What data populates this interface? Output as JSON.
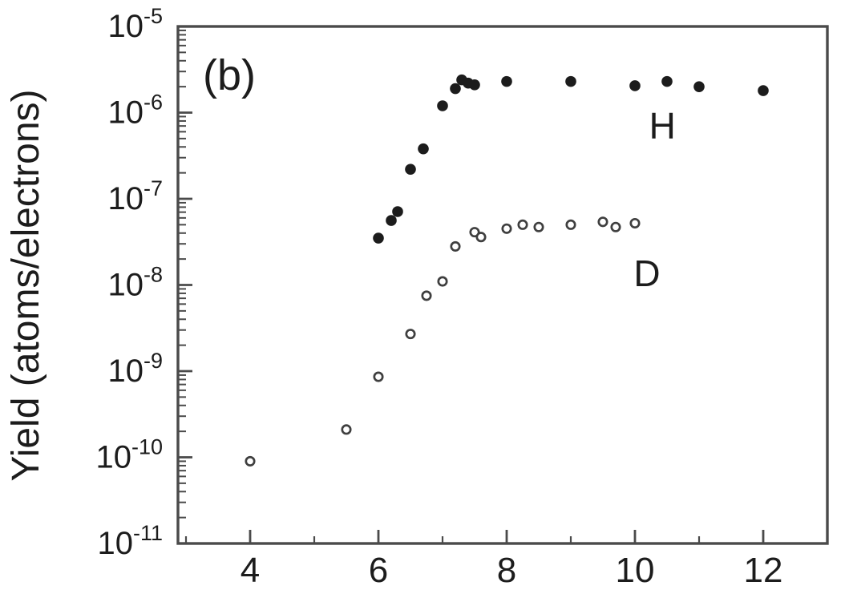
{
  "figure": {
    "panel_label": "(b)",
    "background_color": "#ffffff",
    "ink_color": "#1c1c1c",
    "frame_color": "#4a4a4a",
    "open_marker_stroke_color": "#3f3f3f"
  },
  "chart_data": {
    "type": "scatter",
    "title": "",
    "xlabel": "",
    "ylabel": "Yield (atoms/electrons)",
    "y_scale": "log",
    "xlim": [
      2.875,
      13
    ],
    "ylim": [
      1e-11,
      1e-05
    ],
    "x_major_ticks": [
      4,
      6,
      8,
      10,
      12
    ],
    "x_minor_ticks": [
      3,
      5,
      7,
      9,
      11
    ],
    "y_major_tick_exponents": [
      -5,
      -6,
      -7,
      -8,
      -9,
      -10,
      -11
    ],
    "y_tick_label_base": "10",
    "grid": false,
    "legend_position": "inline-labels",
    "series": [
      {
        "name": "H",
        "marker": "filled-circle",
        "label_anchor": {
          "x": 10.22,
          "y": 5e-07
        },
        "points": [
          {
            "x": 6.0,
            "y": 3.5e-08
          },
          {
            "x": 6.2,
            "y": 5.6e-08
          },
          {
            "x": 6.3,
            "y": 7.1e-08
          },
          {
            "x": 6.5,
            "y": 2.2e-07
          },
          {
            "x": 6.7,
            "y": 3.8e-07
          },
          {
            "x": 7.0,
            "y": 1.2e-06
          },
          {
            "x": 7.2,
            "y": 1.9e-06
          },
          {
            "x": 7.3,
            "y": 2.4e-06
          },
          {
            "x": 7.4,
            "y": 2.2e-06
          },
          {
            "x": 7.5,
            "y": 2.1e-06
          },
          {
            "x": 8.0,
            "y": 2.3e-06
          },
          {
            "x": 9.0,
            "y": 2.3e-06
          },
          {
            "x": 10.0,
            "y": 2.05e-06
          },
          {
            "x": 10.5,
            "y": 2.3e-06
          },
          {
            "x": 11.0,
            "y": 2e-06
          },
          {
            "x": 12.0,
            "y": 1.8e-06
          }
        ]
      },
      {
        "name": "D",
        "marker": "open-circle",
        "label_anchor": {
          "x": 9.98,
          "y": 9.7e-09
        },
        "points": [
          {
            "x": 4.0,
            "y": 9e-11
          },
          {
            "x": 5.5,
            "y": 2.1e-10
          },
          {
            "x": 6.0,
            "y": 8.6e-10
          },
          {
            "x": 6.5,
            "y": 2.7e-09
          },
          {
            "x": 6.75,
            "y": 7.5e-09
          },
          {
            "x": 7.0,
            "y": 1.1e-08
          },
          {
            "x": 7.2,
            "y": 2.8e-08
          },
          {
            "x": 7.5,
            "y": 4.1e-08
          },
          {
            "x": 7.6,
            "y": 3.6e-08
          },
          {
            "x": 8.0,
            "y": 4.5e-08
          },
          {
            "x": 8.25,
            "y": 5e-08
          },
          {
            "x": 8.5,
            "y": 4.7e-08
          },
          {
            "x": 9.0,
            "y": 5e-08
          },
          {
            "x": 9.5,
            "y": 5.4e-08
          },
          {
            "x": 9.7,
            "y": 4.7e-08
          },
          {
            "x": 10.0,
            "y": 5.2e-08
          }
        ]
      }
    ]
  }
}
